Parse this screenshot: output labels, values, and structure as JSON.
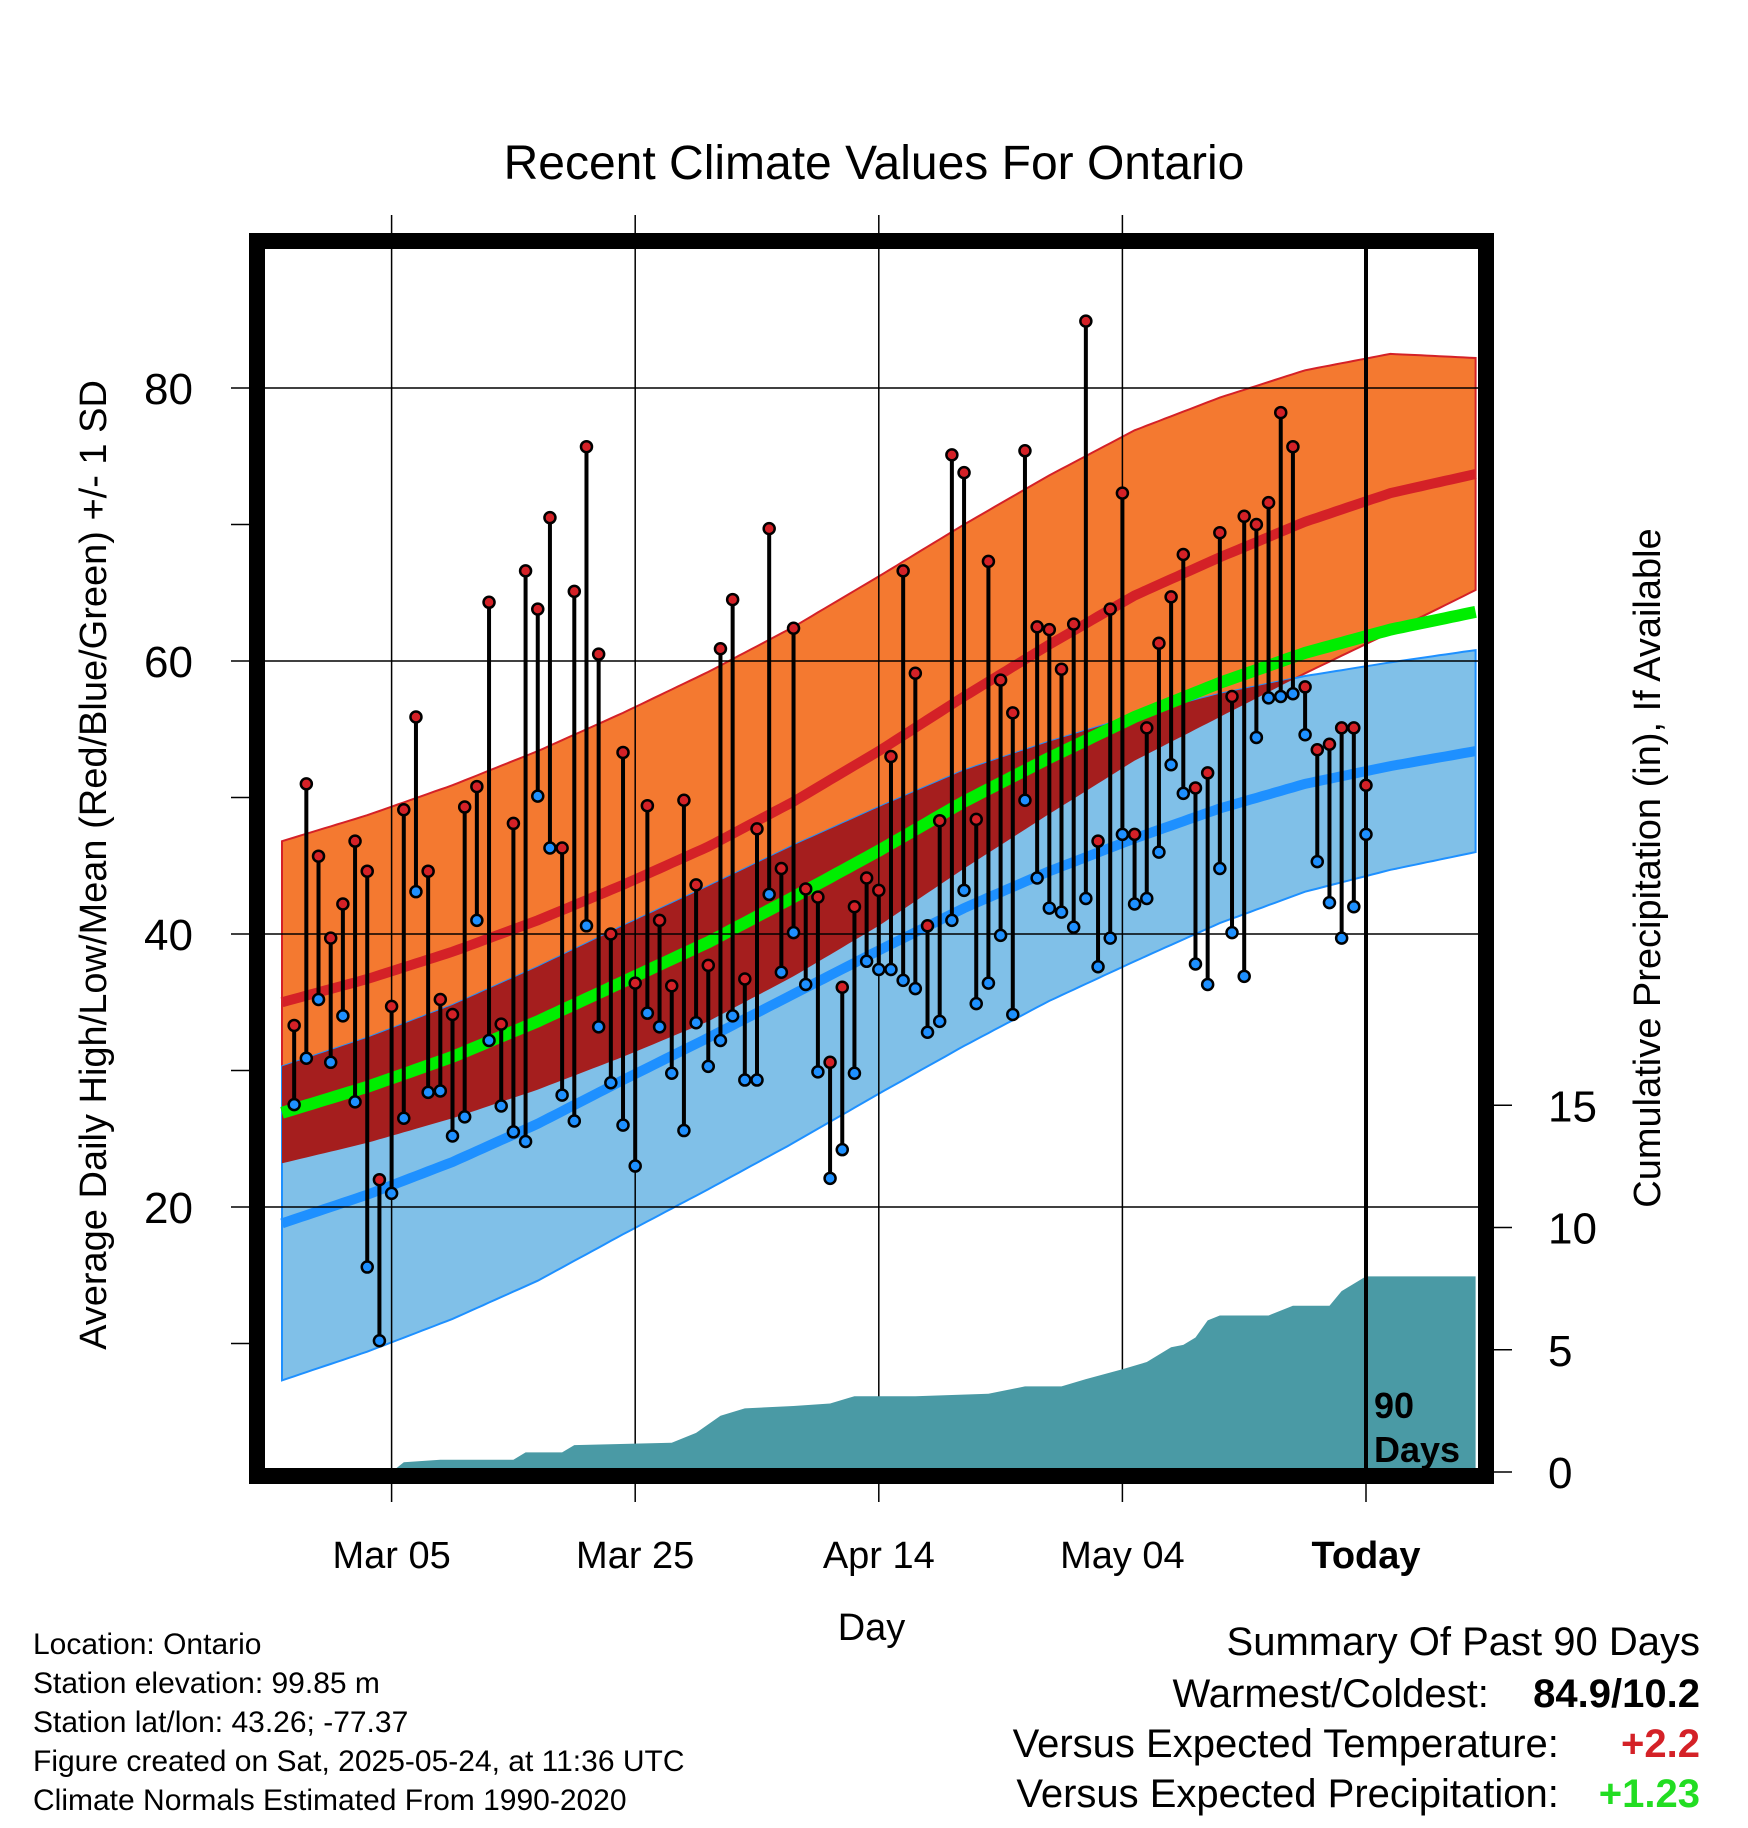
{
  "chart_title": "Recent Climate Values For Ontario",
  "chart_data": {
    "type": "line",
    "title": "Recent Climate Values For Ontario",
    "xlabel": "Day",
    "ylabel": "Average Daily High/Low/Mean (Red/Blue/Green) +/- 1 SD",
    "y2label": "Cumulative Precipitation (in), If Available",
    "x_tick_labels": [
      "Mar 05",
      "Mar 25",
      "Apr 14",
      "May 04",
      "Today"
    ],
    "y_ticks": [
      20,
      40,
      60,
      80
    ],
    "y2_ticks": [
      0,
      5,
      10,
      15
    ],
    "y2lim": [
      0,
      35
    ],
    "ylim": [
      1.5,
      90
    ],
    "xlim": [
      -89,
      9
    ],
    "grid": true,
    "x_days_before_today": [
      -80,
      -60,
      -40,
      -20,
      0
    ],
    "period_marker_label": [
      "90",
      "Days"
    ],
    "colors": {
      "high": "#d42127",
      "low": "#1e90ff",
      "mean": "#00ee00",
      "high_band": "#f47930",
      "low_band": "#80c0e8",
      "overlap_band": "#a51e1e",
      "precip": "#4a9aa5"
    },
    "normal_high": [
      35,
      36.7,
      38.7,
      41,
      43.6,
      46.4,
      49.7,
      53.4,
      57.4,
      61.2,
      64.8,
      67.6,
      70.2,
      72.3,
      73.7
    ],
    "normal_high_sd": [
      11.8,
      12,
      12.2,
      12.4,
      12.6,
      12.8,
      12.8,
      12.8,
      12.6,
      12.4,
      12.1,
      11.7,
      11.1,
      10.2,
      8.5
    ],
    "normal_low": [
      18.8,
      20.9,
      23.3,
      26.1,
      29.3,
      32.4,
      35.6,
      38.8,
      41.9,
      44.6,
      47,
      49.2,
      51,
      52.3,
      53.4
    ],
    "normal_low_sd": [
      11.5,
      11.5,
      11.5,
      11.5,
      11.3,
      11.1,
      10.9,
      10.5,
      10.1,
      9.5,
      9,
      8.4,
      7.9,
      7.6,
      7.4
    ],
    "normal_mean": [
      26.9,
      28.8,
      31,
      33.6,
      36.5,
      39.4,
      42.7,
      46.1,
      49.7,
      52.9,
      55.9,
      58.4,
      60.6,
      62.3,
      63.6
    ],
    "daily_high": [
      33.3,
      51,
      45.7,
      39.7,
      42.2,
      46.8,
      44.6,
      22,
      34.7,
      49.1,
      55.9,
      44.6,
      35.2,
      34.1,
      49.3,
      50.8,
      64.3,
      33.4,
      48.1,
      66.6,
      63.8,
      70.5,
      46.3,
      65.1,
      75.7,
      60.5,
      40,
      53.3,
      36.4,
      49.4,
      41,
      36.2,
      49.8,
      43.6,
      37.7,
      60.9,
      64.5,
      36.7,
      47.7,
      69.7,
      44.8,
      62.4,
      43.3,
      42.7,
      30.6,
      36.1,
      42,
      44.1,
      43.2,
      53,
      66.6,
      59.1,
      40.6,
      48.3,
      75.1,
      73.8,
      48.4,
      67.3,
      58.6,
      56.2,
      75.4,
      62.5,
      62.3,
      59.4,
      62.7,
      84.9,
      46.8,
      63.8,
      72.3,
      47.3,
      55.1,
      61.3,
      64.7,
      67.8,
      50.7,
      51.8,
      69.4,
      57.4,
      70.6,
      70,
      71.6,
      78.2,
      75.7,
      58.1,
      53.5,
      53.9,
      55.1,
      55.1,
      50.9
    ],
    "daily_low": [
      27.5,
      30.9,
      35.2,
      30.6,
      34,
      27.7,
      15.6,
      10.2,
      21,
      26.5,
      43.1,
      28.4,
      28.5,
      25.2,
      26.6,
      41,
      32.2,
      27.4,
      25.5,
      24.8,
      50.1,
      46.3,
      28.2,
      26.3,
      40.6,
      33.2,
      29.1,
      26,
      23,
      34.2,
      33.2,
      29.8,
      25.6,
      33.5,
      30.3,
      32.2,
      34,
      29.3,
      29.3,
      42.9,
      37.2,
      40.1,
      36.3,
      29.9,
      22.1,
      24.2,
      29.8,
      38,
      37.4,
      37.4,
      36.6,
      36,
      32.8,
      33.6,
      41,
      43.2,
      34.9,
      36.4,
      39.9,
      34.1,
      49.8,
      44.1,
      41.9,
      41.6,
      40.5,
      42.6,
      37.6,
      39.7,
      47.3,
      42.2,
      42.6,
      46,
      52.4,
      50.3,
      37.8,
      36.3,
      44.8,
      40.1,
      36.9,
      54.4,
      57.3,
      57.4,
      57.6,
      54.6,
      45.3,
      42.3,
      39.7,
      42,
      47.3,
      47.6
    ],
    "precip_steps": [
      [
        -89,
        0
      ],
      [
        -80,
        0
      ],
      [
        -79,
        0.4
      ],
      [
        -76,
        0.5
      ],
      [
        -70,
        0.5
      ],
      [
        -69,
        0.8
      ],
      [
        -66,
        0.8
      ],
      [
        -65,
        1.1
      ],
      [
        -57,
        1.2
      ],
      [
        -55,
        1.6
      ],
      [
        -53,
        2.3
      ],
      [
        -51,
        2.6
      ],
      [
        -47,
        2.7
      ],
      [
        -44,
        2.8
      ],
      [
        -42,
        3.1
      ],
      [
        -37,
        3.1
      ],
      [
        -31,
        3.2
      ],
      [
        -28,
        3.5
      ],
      [
        -25,
        3.5
      ],
      [
        -23,
        3.8
      ],
      [
        -20,
        4.2
      ],
      [
        -18,
        4.5
      ],
      [
        -16,
        5.1
      ],
      [
        -15,
        5.2
      ],
      [
        -14,
        5.5
      ],
      [
        -13,
        6.2
      ],
      [
        -12,
        6.4
      ],
      [
        -8,
        6.4
      ],
      [
        -6,
        6.8
      ],
      [
        -3,
        6.8
      ],
      [
        -2,
        7.4
      ],
      [
        0,
        8
      ],
      [
        9,
        8
      ]
    ],
    "summary": {
      "heading": "Summary Of Past 90 Days",
      "warm_cold_label": "Warmest/Coldest:",
      "warm_cold_value": "84.9/10.2",
      "temp_label": "Versus Expected Temperature:",
      "temp_value": "+2.2",
      "precip_label": "Versus Expected Precipitation:",
      "precip_value": "+1.23",
      "temp_color": "#d42127",
      "precip_color": "#22dd22"
    }
  },
  "metadata": {
    "location": "Location: Ontario",
    "elevation": "Station elevation: 99.85 m",
    "latlon": "Station lat/lon: 43.26; -77.37",
    "created": "Figure created on Sat, 2025-05-24, at 11:36 UTC",
    "normals": "Climate Normals Estimated From 1990-2020"
  }
}
